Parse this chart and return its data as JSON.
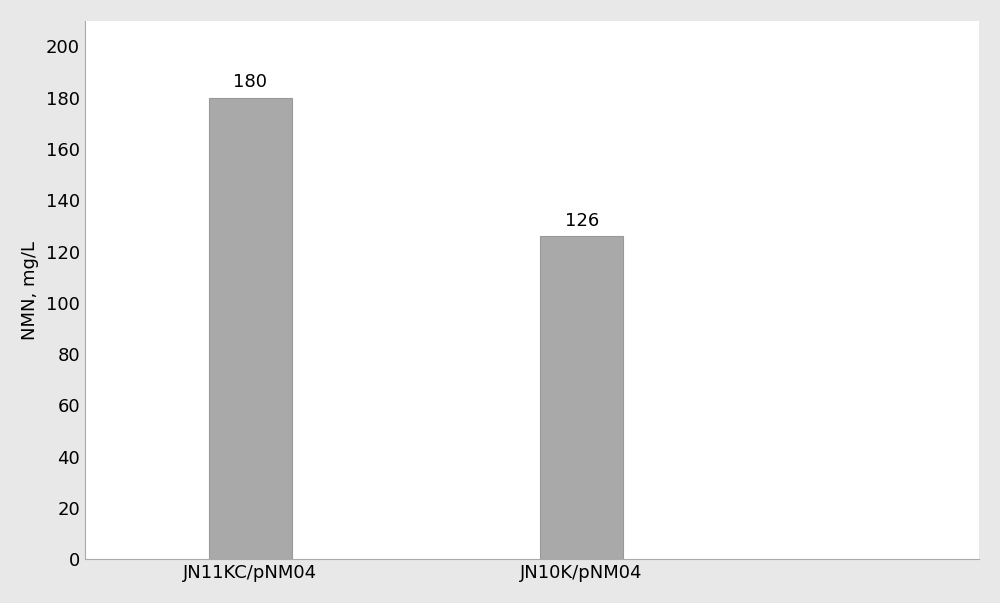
{
  "categories": [
    "JN11KC/pNM04",
    "JN10K/pNM04"
  ],
  "values": [
    180,
    126
  ],
  "bar_color": "#a9a9a9",
  "bar_edgecolor": "#999999",
  "ylabel": "NMN, mg/L",
  "ylim": [
    0,
    210
  ],
  "yticks": [
    0,
    20,
    40,
    60,
    80,
    100,
    120,
    140,
    160,
    180,
    200
  ],
  "bar_width": 0.25,
  "label_fontsize": 13,
  "tick_fontsize": 13,
  "ylabel_fontsize": 13,
  "annotation_fontsize": 13,
  "figure_facecolor": "#e8e8e8",
  "axes_facecolor": "#ffffff",
  "spine_color": "#aaaaaa"
}
